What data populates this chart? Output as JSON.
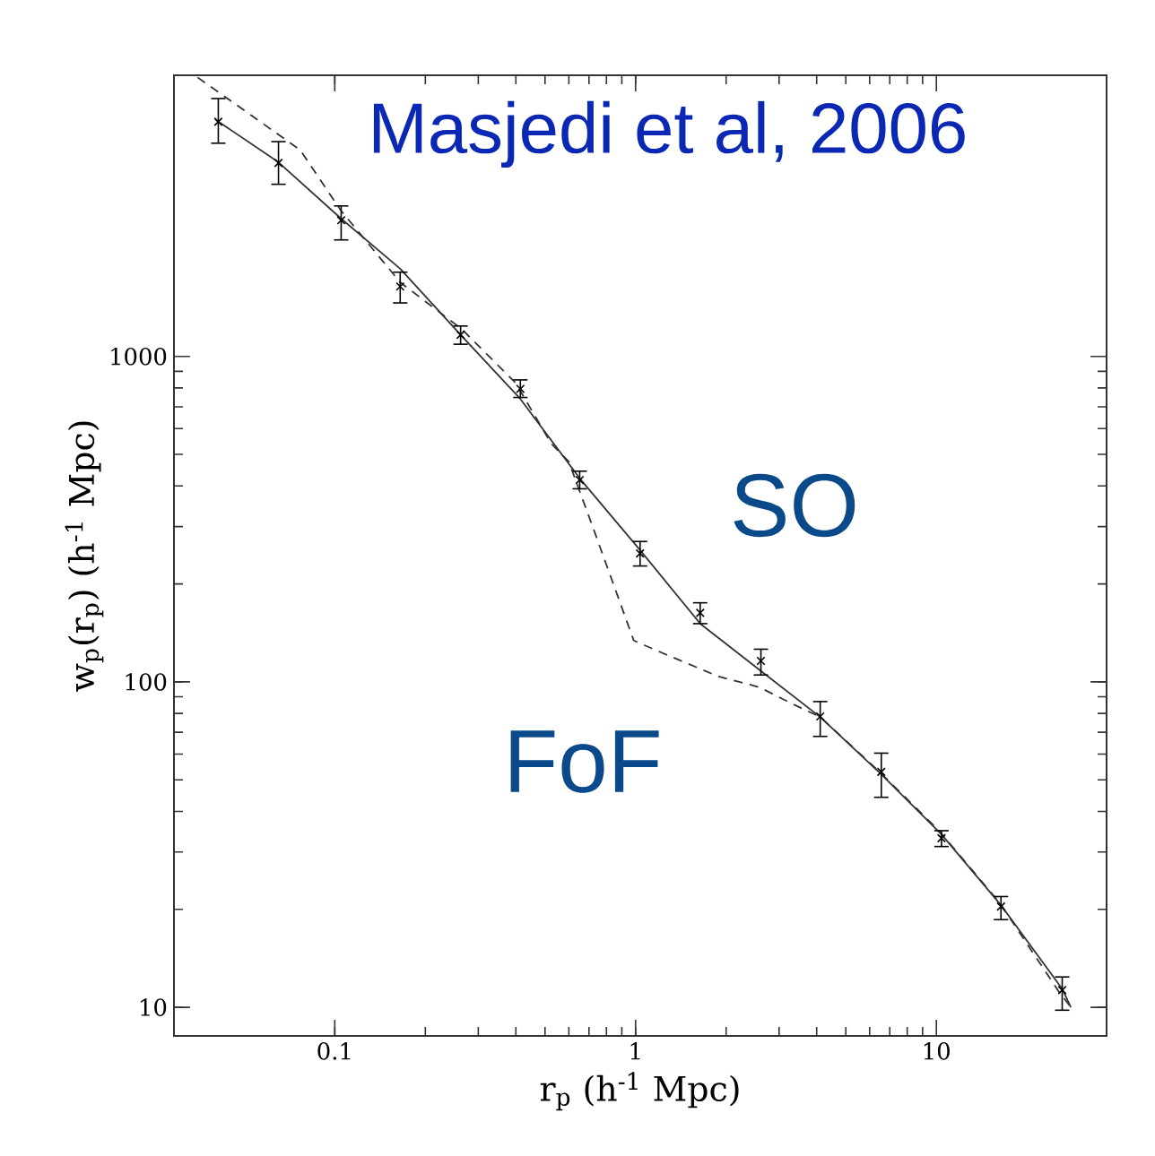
{
  "chart_data": {
    "type": "scatter",
    "xlabel": "r$_{p}$ (h$^{-1}$ Mpc)",
    "ylabel": "w$_{p}$(r$_{p}$) (h$^{-1}$ Mpc)",
    "log": "xy",
    "xlim": [
      0.0292,
      36.8
    ],
    "ylim": [
      8.17,
      7310
    ],
    "xticks": [
      0.1,
      1,
      10
    ],
    "yticks": [
      10,
      100,
      1000
    ],
    "annotations": [
      "Masjedi et al, 2006",
      "SO",
      "FoF"
    ],
    "series": [
      {
        "type": "line",
        "color": "#333333",
        "line_style": "solid",
        "marker": "none",
        "x": [
          0.04,
          0.065,
          0.105,
          0.165,
          0.262,
          0.414,
          0.652,
          1.035,
          1.64,
          2.61,
          4.11,
          6.56,
          10.4,
          16.4,
          26.2,
          28
        ],
        "values": [
          5350,
          3950,
          2650,
          1860,
          1165,
          740,
          422,
          254,
          151,
          108,
          78,
          52,
          34,
          20.6,
          11.4,
          10
        ]
      },
      {
        "type": "line",
        "color": "#333333",
        "line_style": "dashed",
        "marker": "none",
        "x": [
          0.035,
          0.0767,
          0.105,
          0.165,
          0.264,
          0.399,
          0.524,
          0.6,
          0.719,
          0.986,
          1.195,
          1.88,
          2.58,
          3.39,
          4.11,
          6.46,
          10.2,
          16.2,
          25.5,
          28
        ],
        "values": [
          7200,
          4310,
          2800,
          1690,
          1214,
          830,
          540,
          475,
          301,
          134,
          124,
          104,
          96.3,
          84.8,
          78,
          53,
          34.9,
          21,
          11.2,
          10
        ]
      },
      {
        "color": "#000000",
        "marker": "cross",
        "x": [
          0.041,
          0.065,
          0.105,
          0.165,
          0.262,
          0.414,
          0.652,
          1.035,
          1.64,
          2.61,
          4.11,
          6.56,
          10.4,
          16.4,
          26.2
        ],
        "values": [
          5260,
          3930,
          2620,
          1640,
          1165,
          795,
          417,
          248,
          163,
          116,
          78.3,
          52.9,
          33.1,
          20.4,
          11.3
        ],
        "errors": [
          [
            4520,
            6200
          ],
          [
            3380,
            4570
          ],
          [
            2280,
            2900
          ],
          [
            1460,
            1815
          ],
          [
            1090,
            1240
          ],
          [
            748,
            847
          ],
          [
            392,
            444
          ],
          [
            227,
            270
          ],
          [
            151,
            175
          ],
          [
            105,
            126
          ],
          [
            68,
            87
          ],
          [
            44.2,
            60.4
          ],
          [
            31.2,
            34.9
          ],
          [
            18.6,
            21.9
          ],
          [
            9.8,
            12.4
          ]
        ]
      }
    ]
  }
}
